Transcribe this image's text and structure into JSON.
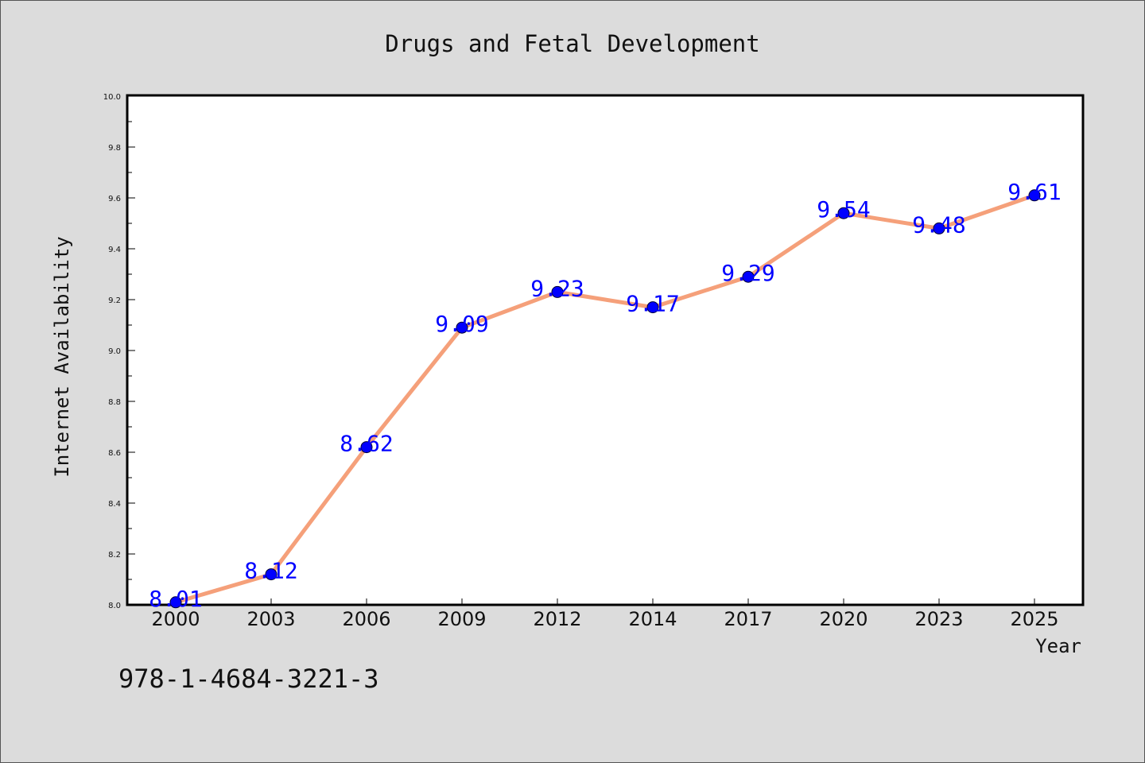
{
  "chart_data": {
    "type": "line",
    "title": "Drugs and Fetal Development",
    "xlabel": "Year",
    "ylabel": "Internet Availability",
    "categories": [
      "2000",
      "2003",
      "2006",
      "2009",
      "2012",
      "2014",
      "2017",
      "2020",
      "2023",
      "2025"
    ],
    "series": [
      {
        "values": [
          8.01,
          8.12,
          8.62,
          9.09,
          9.23,
          9.17,
          9.29,
          9.54,
          9.48,
          9.61
        ],
        "line_color": "#f5a07a",
        "marker_color": "#0000ff"
      }
    ],
    "data_labels": [
      "8.01",
      "8.12",
      "8.62",
      "9.09",
      "9.23",
      "9.17",
      "9.29",
      "9.54",
      "9.48",
      "9.61"
    ],
    "ylim": [
      8.0,
      10.0
    ],
    "y_ticks": [
      "8.0",
      "8.2",
      "8.4",
      "8.6",
      "8.8",
      "9.0",
      "9.2",
      "9.4",
      "9.6",
      "9.8",
      "10.0"
    ],
    "grid": false,
    "legend": "none",
    "annotation": "978-1-4684-3221-3"
  }
}
